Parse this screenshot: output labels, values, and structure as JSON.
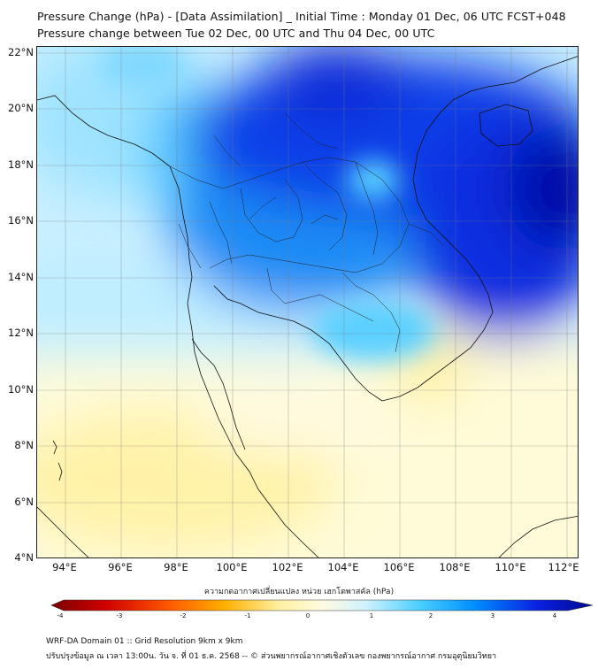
{
  "header": {
    "title_line1": "Pressure Change (hPa) - [Data Assimilation] _ Initial Time : Monday 01 Dec, 06 UTC FCST+048",
    "title_line2": "Pressure change between Tue 02 Dec, 00 UTC and Thu 04 Dec, 00 UTC"
  },
  "map": {
    "lat_labels": [
      "22°N",
      "20°N",
      "18°N",
      "16°N",
      "14°N",
      "12°N",
      "10°N",
      "8°N",
      "6°N",
      "4°N"
    ],
    "lon_labels": [
      "94°E",
      "96°E",
      "98°E",
      "100°E",
      "102°E",
      "104°E",
      "106°E",
      "108°E",
      "110°E",
      "112°E"
    ],
    "extent": {
      "lon_min": 93,
      "lon_max": 112.5,
      "lat_min": 4,
      "lat_max": 22.2
    },
    "field": "pressure change, blue = negative/positive scale per colorbar"
  },
  "colorbar": {
    "title": "ความกดอากาศเปลี่ยนแปลง หน่วย เฮกโตพาสคัล (hPa)",
    "ticks": [
      "-4",
      "-3",
      "-2",
      "-1",
      "0",
      "1",
      "2",
      "3",
      "4"
    ],
    "range": [
      -4,
      4
    ],
    "colors": [
      "#7a0000",
      "#d00000",
      "#ff5a00",
      "#ffb000",
      "#fff0a0",
      "#fffbe0",
      "#cff2ff",
      "#4ad0ff",
      "#0090ff",
      "#0a1fe0",
      "#000a8f"
    ]
  },
  "footer": {
    "line1": "WRF-DA Domain 01 :: Grid Resolution 9km x 9km",
    "line2": "ปรับปรุงข้อมูล ณ เวลา 13:00น. วัน จ. ที่ 01 ธ.ค. 2568 -- © ส่วนพยากรณ์อากาศเชิงตัวเลข กองพยากรณ์อากาศ กรมอุตุนิยมวิทยา"
  }
}
